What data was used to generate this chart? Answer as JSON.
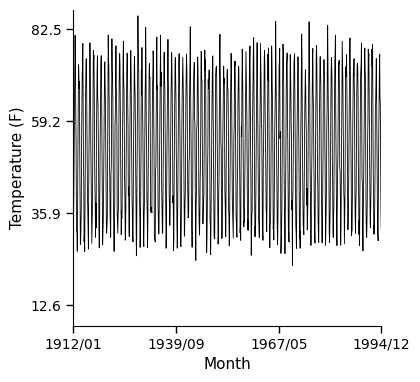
{
  "title": "",
  "xlabel": "Month",
  "ylabel": "Temperature (F)",
  "xlim_start_year": 1912,
  "xlim_start_month": 1,
  "xlim_end_year": 1994,
  "xlim_end_month": 12,
  "yticks": [
    12.6,
    35.9,
    59.2,
    82.5
  ],
  "xtick_labels": [
    "1912/01",
    "1939/09",
    "1967/05",
    "1994/12"
  ],
  "xtick_years": [
    1912.0,
    1939.6667,
    1967.3333,
    1994.9167
  ],
  "line_color": "#000000",
  "background_color": "#ffffff",
  "summer_mean": 75.5,
  "winter_mean": 30.0,
  "noise_std": 3.5,
  "data_start_year": 1912,
  "data_start_month": 1,
  "data_end_year": 1994,
  "data_end_month": 12,
  "ylim": [
    7.5,
    87.5
  ],
  "tick_fontsize": 10,
  "label_fontsize": 11
}
